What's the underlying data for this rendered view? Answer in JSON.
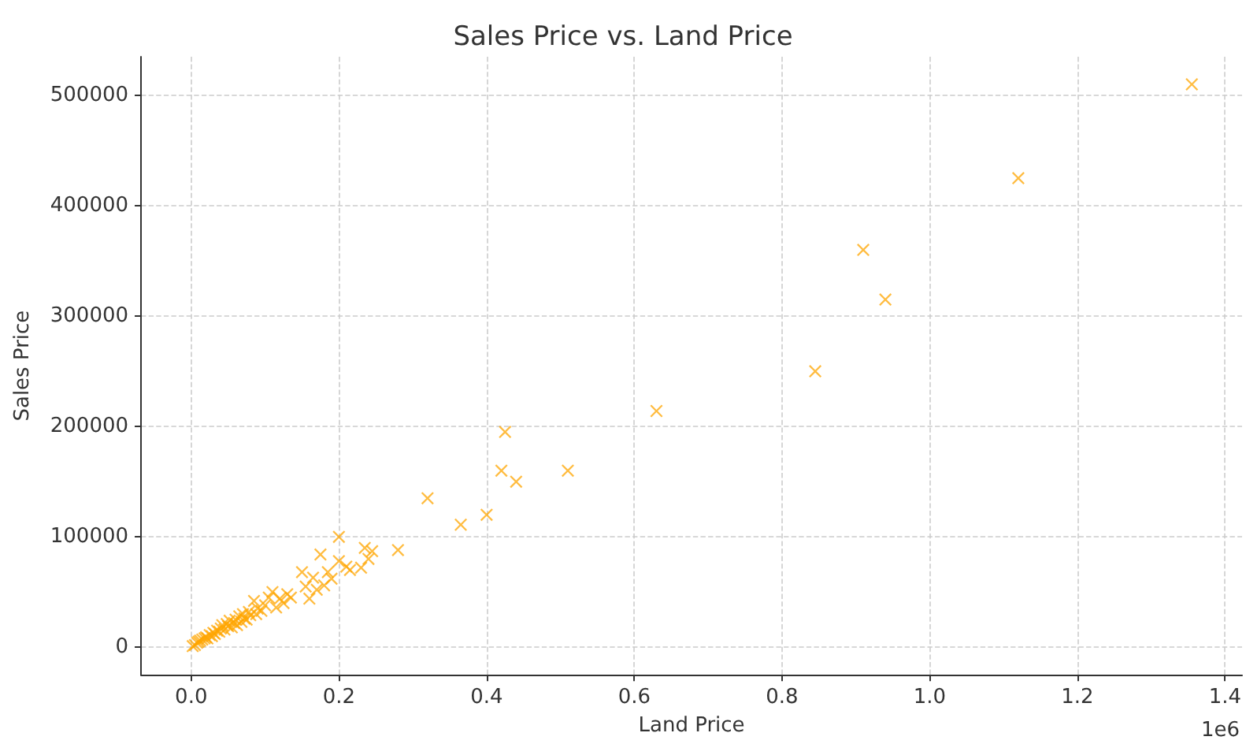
{
  "chart_data": {
    "type": "scatter",
    "title": "Sales Price vs. Land Price",
    "xlabel": "Land Price",
    "ylabel": "Sales Price",
    "annotations": [
      "1e6"
    ],
    "x": [
      0.002,
      0.005,
      0.008,
      0.01,
      0.012,
      0.015,
      0.018,
      0.02,
      0.022,
      0.025,
      0.028,
      0.03,
      0.032,
      0.035,
      0.038,
      0.04,
      0.042,
      0.045,
      0.048,
      0.05,
      0.052,
      0.055,
      0.058,
      0.06,
      0.062,
      0.065,
      0.068,
      0.07,
      0.072,
      0.075,
      0.078,
      0.08,
      0.085,
      0.088,
      0.09,
      0.095,
      0.1,
      0.105,
      0.11,
      0.115,
      0.12,
      0.125,
      0.13,
      0.135,
      0.15,
      0.155,
      0.16,
      0.165,
      0.17,
      0.175,
      0.18,
      0.185,
      0.19,
      0.2,
      0.2,
      0.21,
      0.215,
      0.23,
      0.235,
      0.24,
      0.245,
      0.28,
      0.32,
      0.365,
      0.4,
      0.42,
      0.425,
      0.44,
      0.51,
      0.63,
      0.845,
      0.91,
      0.94,
      1.12,
      1.355
    ],
    "series": [
      {
        "color": "#ffa500",
        "values": [
          1000,
          2000,
          4000,
          5000,
          6000,
          7000,
          8000,
          9000,
          8000,
          11000,
          10000,
          13000,
          12000,
          15000,
          14000,
          17000,
          20000,
          16000,
          21000,
          19000,
          24000,
          18000,
          22000,
          25000,
          20000,
          28000,
          23000,
          30000,
          26000,
          25000,
          32000,
          29000,
          42000,
          30000,
          35000,
          33000,
          38000,
          45000,
          50000,
          36000,
          44000,
          40000,
          48000,
          45000,
          68000,
          55000,
          44000,
          63000,
          52000,
          84000,
          56000,
          68000,
          62000,
          100000,
          78000,
          73000,
          70000,
          72000,
          90000,
          80000,
          87000,
          88000,
          135000,
          111000,
          120000,
          160000,
          195000,
          150000,
          160000,
          214000,
          250000,
          360000,
          315000,
          425000,
          510000
        ]
      }
    ],
    "xlim": [
      -0.068,
      1.423
    ],
    "ylim": [
      -25000,
      535000
    ],
    "xticks": [
      {
        "value": 0,
        "label": "0.0"
      },
      0.2,
      0.4,
      0.6,
      0.8,
      {
        "value": 1,
        "label": "1.0"
      },
      1.2,
      1.4
    ],
    "yticks": [
      0,
      100000,
      200000,
      300000,
      400000,
      500000
    ],
    "grid": true,
    "marker": "cross"
  }
}
